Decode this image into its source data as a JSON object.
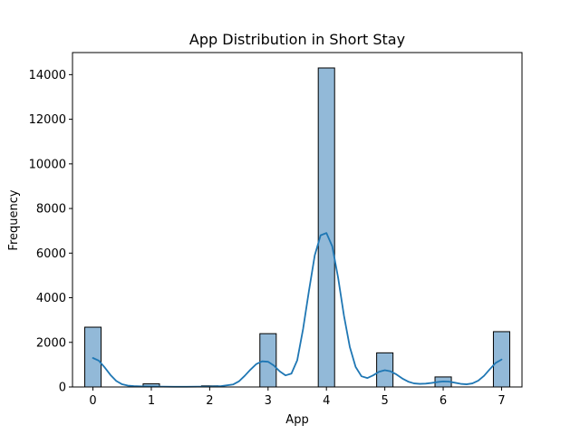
{
  "chart_data": {
    "type": "bar",
    "title": "App Distribution in Short Stay",
    "xlabel": "App",
    "ylabel": "Frequency",
    "xlim": [
      -0.35,
      7.35
    ],
    "ylim": [
      0,
      14990
    ],
    "xticks": [
      0,
      1,
      2,
      3,
      4,
      5,
      6,
      7
    ],
    "yticks": [
      0,
      2000,
      4000,
      6000,
      8000,
      10000,
      12000,
      14000
    ],
    "bin_width": 0.28,
    "bars": [
      {
        "x": 0,
        "value": 2680
      },
      {
        "x": 1,
        "value": 140
      },
      {
        "x": 2,
        "value": 50
      },
      {
        "x": 3,
        "value": 2390
      },
      {
        "x": 4,
        "value": 14300
      },
      {
        "x": 5,
        "value": 1530
      },
      {
        "x": 6,
        "value": 450
      },
      {
        "x": 7,
        "value": 2480
      }
    ],
    "kde": {
      "x": [
        0,
        0.1,
        0.2,
        0.3,
        0.4,
        0.5,
        0.6,
        0.7,
        0.8,
        0.9,
        1.0,
        1.2,
        1.4,
        1.6,
        1.8,
        2.0,
        2.2,
        2.4,
        2.5,
        2.6,
        2.7,
        2.8,
        2.9,
        3.0,
        3.1,
        3.2,
        3.3,
        3.4,
        3.5,
        3.6,
        3.7,
        3.8,
        3.9,
        4.0,
        4.1,
        4.2,
        4.3,
        4.4,
        4.5,
        4.6,
        4.7,
        4.8,
        4.9,
        5.0,
        5.1,
        5.2,
        5.3,
        5.4,
        5.5,
        5.6,
        5.7,
        5.8,
        5.9,
        6.0,
        6.1,
        6.2,
        6.3,
        6.4,
        6.5,
        6.6,
        6.7,
        6.8,
        6.9,
        7.0
      ],
      "y": [
        1300,
        1180,
        880,
        540,
        270,
        120,
        60,
        40,
        30,
        25,
        20,
        15,
        10,
        10,
        15,
        20,
        40,
        110,
        250,
        500,
        780,
        1030,
        1150,
        1130,
        960,
        700,
        520,
        600,
        1200,
        2600,
        4300,
        5900,
        6800,
        6900,
        6300,
        4900,
        3200,
        1800,
        900,
        480,
        400,
        520,
        680,
        750,
        700,
        560,
        380,
        240,
        160,
        140,
        150,
        180,
        220,
        250,
        240,
        190,
        140,
        120,
        160,
        280,
        500,
        800,
        1080,
        1230
      ]
    },
    "colors": {
      "bar_fill": "#92b9d8",
      "bar_edge": "#000000",
      "kde_line": "#1f77b4",
      "axes": "#000000"
    },
    "grid": false,
    "legend": "none"
  }
}
